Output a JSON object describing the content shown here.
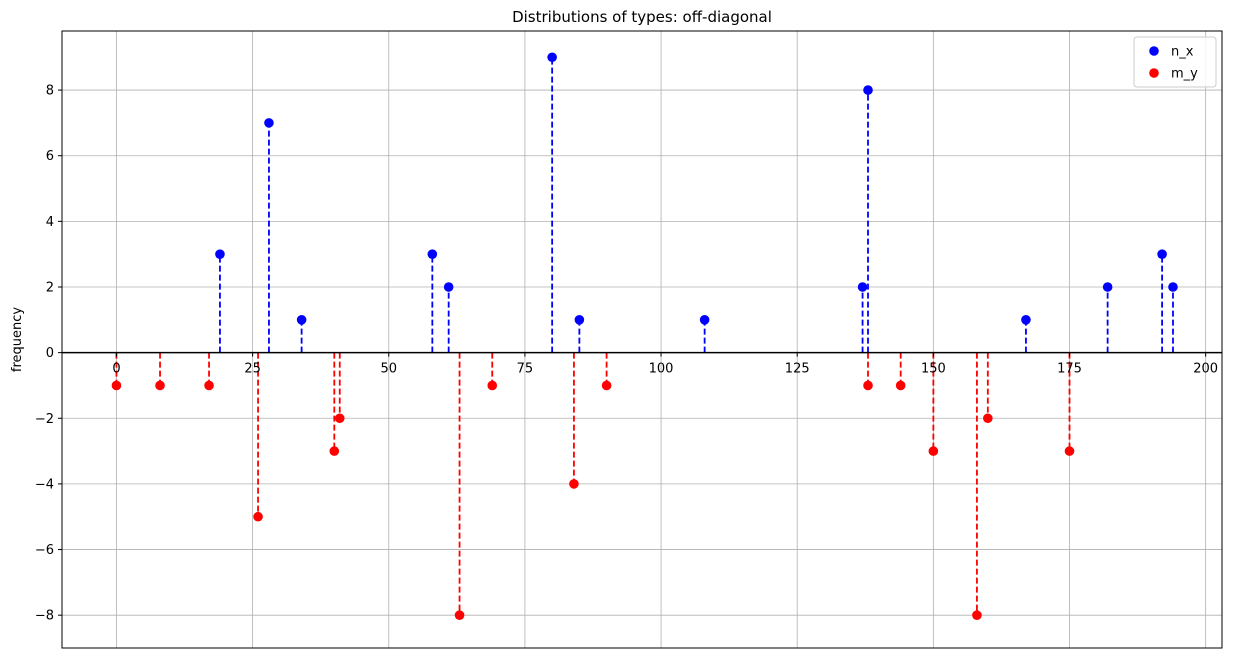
{
  "chart_data": {
    "type": "stem",
    "title": "Distributions of types: off-diagonal",
    "xlabel": "",
    "ylabel": "frequency",
    "xlim": [
      -10,
      203
    ],
    "ylim": [
      -9,
      9.8
    ],
    "xticks": [
      0,
      25,
      50,
      75,
      100,
      125,
      150,
      175,
      200
    ],
    "yticks": [
      -8,
      -6,
      -4,
      -2,
      0,
      2,
      4,
      6,
      8
    ],
    "ytick_labels": [
      "−8",
      "−6",
      "−4",
      "−2",
      "0",
      "2",
      "4",
      "6",
      "8"
    ],
    "grid": true,
    "legend": "top-right",
    "series": [
      {
        "name": "n_x",
        "color": "#0000ff",
        "x": [
          19,
          28,
          34,
          58,
          61,
          80,
          85,
          108,
          137,
          138,
          167,
          182,
          192,
          194
        ],
        "y": [
          3,
          7,
          1,
          3,
          2,
          9,
          1,
          1,
          2,
          8,
          1,
          2,
          3,
          2
        ]
      },
      {
        "name": "m_y",
        "color": "#ff0000",
        "x": [
          0,
          8,
          17,
          26,
          40,
          41,
          63,
          69,
          84,
          90,
          138,
          144,
          150,
          158,
          160,
          175
        ],
        "y": [
          -1,
          -1,
          -1,
          -5,
          -3,
          -2,
          -8,
          -1,
          -4,
          -1,
          -1,
          -1,
          -3,
          -8,
          -2,
          -3
        ]
      }
    ]
  }
}
